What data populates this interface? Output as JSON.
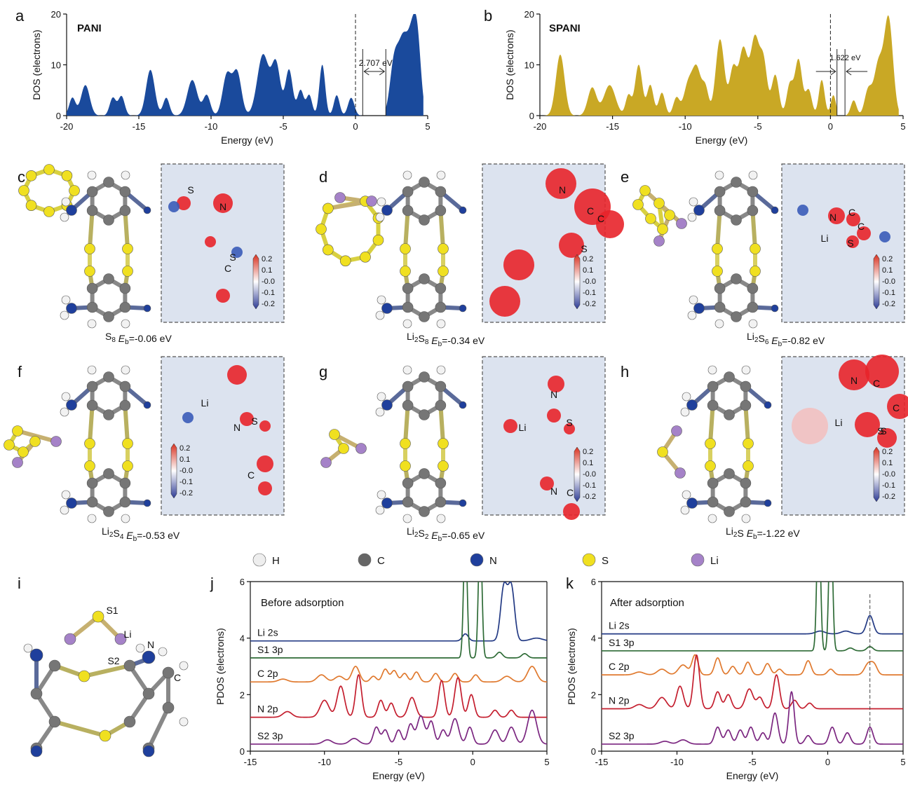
{
  "panel_letters": [
    "a",
    "b",
    "c",
    "d",
    "e",
    "f",
    "g",
    "h",
    "i",
    "j",
    "k"
  ],
  "legend": [
    {
      "label": "H",
      "color": "#eeeeee"
    },
    {
      "label": "C",
      "color": "#666666"
    },
    {
      "label": "N",
      "color": "#1f3f9c"
    },
    {
      "label": "S",
      "color": "#f0e020"
    },
    {
      "label": "Li",
      "color": "#a582c8"
    }
  ],
  "colorbar_ticks": [
    "0.2",
    "0.1",
    "-0.0",
    "-0.1",
    "-0.2"
  ],
  "chart_data": [
    {
      "id": "a",
      "type": "area",
      "title": "PANI",
      "xlabel": "Energy (eV)",
      "ylabel": "DOS (electrons)",
      "xlim": [
        -20,
        5
      ],
      "ylim": [
        0,
        20
      ],
      "xticks": [
        -20,
        -15,
        -10,
        -5,
        0,
        5
      ],
      "yticks": [
        0,
        10,
        20
      ],
      "color": "#1a4a9c",
      "gap_label": "2.707 eV",
      "gap": [
        0.5,
        2.1
      ],
      "fermi": 0,
      "peaks": [
        [
          -19.6,
          3.5,
          0.22
        ],
        [
          -18.7,
          6,
          0.3
        ],
        [
          -16.8,
          3.5,
          0.22
        ],
        [
          -16.2,
          3.8,
          0.22
        ],
        [
          -14.2,
          9,
          0.3
        ],
        [
          -13.1,
          3.5,
          0.22
        ],
        [
          -11.3,
          7,
          0.35
        ],
        [
          -10.3,
          4,
          0.25
        ],
        [
          -8.9,
          8,
          0.3
        ],
        [
          -8.2,
          8.5,
          0.3
        ],
        [
          -6.4,
          12,
          0.4
        ],
        [
          -5.5,
          10,
          0.3
        ],
        [
          -4.6,
          9,
          0.25
        ],
        [
          -3.8,
          5,
          0.22
        ],
        [
          -3.2,
          4,
          0.2
        ],
        [
          -2.3,
          10,
          0.2
        ],
        [
          -1.3,
          4,
          0.2
        ],
        [
          -0.3,
          3.5,
          0.22
        ],
        [
          2.7,
          11,
          0.3
        ],
        [
          3.3,
          13,
          0.3
        ],
        [
          3.9,
          14,
          0.3
        ],
        [
          4.3,
          12,
          0.25
        ]
      ],
      "area_ranges": [
        [
          -20.5,
          0.5
        ],
        [
          2.1,
          4.7
        ]
      ]
    },
    {
      "id": "b",
      "type": "area",
      "title": "SPANI",
      "xlabel": "Energy (eV)",
      "ylabel": "DOS (electrons)",
      "xlim": [
        -20,
        5
      ],
      "ylim": [
        0,
        20
      ],
      "xticks": [
        -20,
        -15,
        -10,
        -5,
        0,
        5
      ],
      "yticks": [
        0,
        10,
        20
      ],
      "color": "#c9a825",
      "gap_label": "1.622 eV",
      "gap": [
        0.45,
        1.0
      ],
      "fermi": 0,
      "peaks": [
        [
          -18.6,
          12,
          0.3
        ],
        [
          -16.4,
          5.5,
          0.3
        ],
        [
          -15.2,
          6,
          0.4
        ],
        [
          -13.9,
          4,
          0.2
        ],
        [
          -13.2,
          10,
          0.25
        ],
        [
          -12.4,
          6,
          0.22
        ],
        [
          -11.6,
          4.5,
          0.22
        ],
        [
          -10.6,
          3.5,
          0.22
        ],
        [
          -9.8,
          6,
          0.3
        ],
        [
          -9.2,
          9,
          0.3
        ],
        [
          -8.6,
          5,
          0.22
        ],
        [
          -7.6,
          15,
          0.3
        ],
        [
          -6.7,
          9,
          0.25
        ],
        [
          -6.0,
          13,
          0.3
        ],
        [
          -5.2,
          15,
          0.3
        ],
        [
          -4.6,
          10,
          0.25
        ],
        [
          -3.8,
          8,
          0.25
        ],
        [
          -2.8,
          6,
          0.22
        ],
        [
          -2.2,
          11,
          0.25
        ],
        [
          -1.5,
          5,
          0.22
        ],
        [
          -0.6,
          7,
          0.2
        ],
        [
          0.2,
          4,
          0.18
        ],
        [
          1.6,
          3,
          0.2
        ],
        [
          2.6,
          5,
          0.25
        ],
        [
          3.3,
          10,
          0.3
        ],
        [
          4.0,
          19,
          0.3
        ]
      ],
      "area_ranges": [
        [
          -20.5,
          0.45
        ],
        [
          1.0,
          4.7
        ]
      ]
    },
    {
      "id": "j",
      "type": "line",
      "title": "Before adsorption",
      "xlabel": "Energy (eV)",
      "ylabel": "PDOS (electrons)",
      "xlim": [
        -15,
        5
      ],
      "ylim": [
        0,
        6
      ],
      "xticks": [
        -15,
        -10,
        -5,
        0,
        5
      ],
      "yticks": [
        0,
        2,
        4,
        6
      ],
      "series": [
        {
          "name": "Li 2s",
          "color": "#233a84",
          "offset": 3.9,
          "peaks": [
            [
              -0.5,
              0.25,
              0.2
            ],
            [
              2.1,
              1.9,
              0.22
            ],
            [
              2.6,
              1.9,
              0.22
            ],
            [
              4.3,
              0.1,
              0.4
            ]
          ]
        },
        {
          "name": "S1 3p",
          "color": "#2e6b36",
          "offset": 3.3,
          "peaks": [
            [
              -0.5,
              4.5,
              0.12
            ],
            [
              0.5,
              4.5,
              0.12
            ],
            [
              1.8,
              0.2,
              0.2
            ],
            [
              3.5,
              0.15,
              0.2
            ]
          ]
        },
        {
          "name": "C 2p",
          "color": "#e0792e",
          "offset": 2.45,
          "peaks": [
            [
              -12.8,
              0.1,
              0.3
            ],
            [
              -10.2,
              0.25,
              0.3
            ],
            [
              -9,
              0.2,
              0.3
            ],
            [
              -7.9,
              0.55,
              0.25
            ],
            [
              -6.7,
              0.2,
              0.2
            ],
            [
              -5.9,
              0.45,
              0.2
            ],
            [
              -5.3,
              0.4,
              0.2
            ],
            [
              -4.6,
              0.3,
              0.2
            ],
            [
              -3.8,
              0.35,
              0.2
            ],
            [
              -2.5,
              0.3,
              0.2
            ],
            [
              -1.2,
              0.3,
              0.2
            ],
            [
              0.2,
              0.25,
              0.2
            ],
            [
              2.3,
              0.2,
              0.3
            ],
            [
              4,
              0.55,
              0.3
            ]
          ]
        },
        {
          "name": "N 2p",
          "color": "#c41e2e",
          "offset": 1.2,
          "peaks": [
            [
              -12.5,
              0.2,
              0.3
            ],
            [
              -10,
              0.6,
              0.3
            ],
            [
              -8.9,
              1.1,
              0.25
            ],
            [
              -7.7,
              1.5,
              0.2
            ],
            [
              -6.2,
              0.6,
              0.2
            ],
            [
              -5.5,
              0.5,
              0.2
            ],
            [
              -4.1,
              0.7,
              0.25
            ],
            [
              -2.1,
              1.3,
              0.2
            ],
            [
              -1,
              1.4,
              0.22
            ],
            [
              -0.1,
              0.8,
              0.2
            ],
            [
              1.5,
              0.25,
              0.2
            ],
            [
              2.6,
              0.25,
              0.2
            ]
          ]
        },
        {
          "name": "S2 3p",
          "color": "#7b2680",
          "offset": 0.25,
          "peaks": [
            [
              -9.8,
              0.15,
              0.3
            ],
            [
              -8,
              0.2,
              0.3
            ],
            [
              -6.5,
              0.6,
              0.2
            ],
            [
              -5.9,
              0.5,
              0.2
            ],
            [
              -5,
              0.5,
              0.2
            ],
            [
              -4.2,
              0.7,
              0.2
            ],
            [
              -3.5,
              1,
              0.25
            ],
            [
              -2.8,
              0.8,
              0.2
            ],
            [
              -2,
              0.5,
              0.2
            ],
            [
              -1.2,
              0.9,
              0.25
            ],
            [
              -0.2,
              0.6,
              0.2
            ],
            [
              1.5,
              0.5,
              0.25
            ],
            [
              2.6,
              0.6,
              0.25
            ],
            [
              4,
              1.2,
              0.3
            ]
          ]
        }
      ]
    },
    {
      "id": "k",
      "type": "line",
      "title": "After adsorption",
      "xlabel": "Energy (eV)",
      "ylabel": "PDOS (electrons)",
      "xlim": [
        -15,
        5
      ],
      "ylim": [
        0,
        6
      ],
      "xticks": [
        -15,
        -10,
        -5,
        0,
        5
      ],
      "yticks": [
        0,
        2,
        4,
        6
      ],
      "marker_x": 2.8,
      "series": [
        {
          "name": "Li 2s",
          "color": "#233a84",
          "offset": 4.15,
          "peaks": [
            [
              -0.5,
              0.1,
              0.3
            ],
            [
              1.2,
              0.1,
              0.3
            ],
            [
              2.8,
              0.65,
              0.22
            ]
          ]
        },
        {
          "name": "S1 3p",
          "color": "#2e6b36",
          "offset": 3.55,
          "peaks": [
            [
              -0.6,
              5,
              0.12
            ],
            [
              0.2,
              5,
              0.12
            ],
            [
              1.5,
              0.1,
              0.2
            ],
            [
              2.8,
              0.15,
              0.2
            ]
          ]
        },
        {
          "name": "C 2p",
          "color": "#e0792e",
          "offset": 2.7,
          "peaks": [
            [
              -12.5,
              0.1,
              0.3
            ],
            [
              -11,
              0.2,
              0.3
            ],
            [
              -9.6,
              0.35,
              0.3
            ],
            [
              -8.8,
              0.7,
              0.2
            ],
            [
              -7.3,
              0.6,
              0.2
            ],
            [
              -6.3,
              0.3,
              0.2
            ],
            [
              -5.3,
              0.45,
              0.2
            ],
            [
              -4,
              0.4,
              0.2
            ],
            [
              -3.2,
              0.2,
              0.2
            ],
            [
              -1.3,
              0.5,
              0.2
            ],
            [
              0.2,
              0.2,
              0.2
            ],
            [
              2.7,
              0.4,
              0.25
            ],
            [
              3.1,
              0.3,
              0.2
            ]
          ]
        },
        {
          "name": "N 2p",
          "color": "#c41e2e",
          "offset": 1.5,
          "peaks": [
            [
              -12.5,
              0.15,
              0.3
            ],
            [
              -11,
              0.4,
              0.3
            ],
            [
              -9.8,
              0.8,
              0.22
            ],
            [
              -8.7,
              1.9,
              0.2
            ],
            [
              -7.3,
              0.6,
              0.2
            ],
            [
              -6.6,
              0.5,
              0.2
            ],
            [
              -5.2,
              0.7,
              0.25
            ],
            [
              -4.5,
              0.4,
              0.2
            ],
            [
              -3.4,
              1.2,
              0.2
            ],
            [
              -2.2,
              0.3,
              0.2
            ],
            [
              -1.2,
              0.2,
              0.2
            ]
          ]
        },
        {
          "name": "S2 3p",
          "color": "#7b2680",
          "offset": 0.25,
          "peaks": [
            [
              -10.8,
              0.1,
              0.3
            ],
            [
              -9.6,
              0.15,
              0.3
            ],
            [
              -7.3,
              0.6,
              0.2
            ],
            [
              -6.6,
              0.5,
              0.2
            ],
            [
              -5.8,
              0.5,
              0.2
            ],
            [
              -5.1,
              0.6,
              0.2
            ],
            [
              -4.3,
              0.4,
              0.2
            ],
            [
              -3.5,
              1.1,
              0.2
            ],
            [
              -2.4,
              1.85,
              0.18
            ],
            [
              -1.3,
              0.3,
              0.2
            ],
            [
              0.3,
              0.6,
              0.2
            ],
            [
              1.3,
              0.4,
              0.2
            ],
            [
              2.8,
              0.6,
              0.2
            ]
          ]
        }
      ]
    }
  ],
  "structures": [
    {
      "id": "c",
      "adsorbate": "S8",
      "mol_html": "S<sub>8</sub>",
      "eb_value": "=-0.06 eV",
      "atoms": [
        "S",
        "N",
        "S",
        "C"
      ]
    },
    {
      "id": "d",
      "adsorbate": "Li2S8",
      "mol_html": "Li<sub>2</sub>S<sub>8</sub>",
      "eb_value": "=-0.34 eV",
      "atoms": [
        "N",
        "C",
        "C",
        "S"
      ]
    },
    {
      "id": "e",
      "adsorbate": "Li2S6",
      "mol_html": "Li<sub>2</sub>S<sub>6</sub>",
      "eb_value": "=-0.82 eV",
      "atoms": [
        "N",
        "C",
        "C",
        "Li",
        "S"
      ]
    },
    {
      "id": "f",
      "adsorbate": "Li2S4",
      "mol_html": "Li<sub>2</sub>S<sub>4</sub>",
      "eb_value": "=-0.53 eV",
      "atoms": [
        "Li",
        "N",
        "S",
        "C"
      ]
    },
    {
      "id": "g",
      "adsorbate": "Li2S2",
      "mol_html": "Li<sub>2</sub>S<sub>2</sub>",
      "eb_value": "=-0.65 eV",
      "atoms": [
        "N",
        "Li",
        "S",
        "N",
        "C"
      ]
    },
    {
      "id": "h",
      "adsorbate": "Li2S",
      "mol_html": "Li<sub>2</sub>S",
      "eb_value": "=-1.22 eV",
      "atoms": [
        "N",
        "C",
        "C",
        "Li",
        "S",
        "S"
      ]
    }
  ],
  "eb_symbol": "E",
  "eb_subscript": "b",
  "panel_i_labels": [
    "S1",
    "Li",
    "N",
    "S2",
    "C"
  ]
}
